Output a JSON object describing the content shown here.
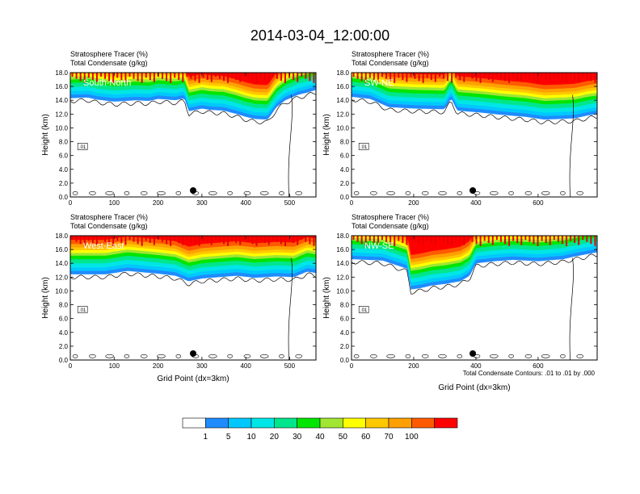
{
  "figure": {
    "title": "2014-03-04_12:00:00",
    "footnote": "Total Condensate Contours: .01 to .01 by .000"
  },
  "chart_data": [
    {
      "type": "heatmap",
      "panel": "South-North",
      "title_lines": [
        "Stratosphere Tracer   (%)",
        "Total Condensate   (g/kg)"
      ],
      "label": "South-North",
      "ylabel": "Height (km)",
      "xlabel": "",
      "xlim": [
        0,
        560
      ],
      "ylim": [
        0,
        18
      ],
      "xticks": [
        0,
        100,
        200,
        300,
        400,
        500
      ],
      "yticks": [
        0.0,
        2.0,
        4.0,
        6.0,
        8.0,
        10.0,
        12.0,
        14.0,
        16.0,
        18.0
      ],
      "marker_x": 280,
      "contour_label": ".01",
      "tracer_base_km": [
        [
          0,
          14.3
        ],
        [
          40,
          14.4
        ],
        [
          60,
          14.1
        ],
        [
          100,
          13.8
        ],
        [
          150,
          14.0
        ],
        [
          180,
          13.9
        ],
        [
          200,
          14.2
        ],
        [
          240,
          14.0
        ],
        [
          260,
          14.3
        ],
        [
          270,
          12.4
        ],
        [
          300,
          12.8
        ],
        [
          320,
          12.6
        ],
        [
          350,
          12.5
        ],
        [
          380,
          12.0
        ],
        [
          400,
          11.6
        ],
        [
          420,
          11.3
        ],
        [
          450,
          11.2
        ],
        [
          470,
          13.0
        ],
        [
          490,
          14.0
        ],
        [
          520,
          14.8
        ],
        [
          540,
          15.1
        ],
        [
          560,
          15.5
        ]
      ]
    },
    {
      "type": "heatmap",
      "panel": "SW-NE",
      "title_lines": [
        "Stratosphere Tracer   (%)",
        "Total Condensate   (g/kg)"
      ],
      "label": "SW-NE",
      "ylabel": "Height (km)",
      "xlabel": "",
      "xlim": [
        0,
        790
      ],
      "ylim": [
        0,
        18
      ],
      "xticks": [
        0,
        200,
        400,
        600
      ],
      "yticks": [
        0.0,
        2.0,
        4.0,
        6.0,
        8.0,
        10.0,
        12.0,
        14.0,
        16.0,
        18.0
      ],
      "marker_x": 390,
      "contour_label": ".01",
      "tracer_base_km": [
        [
          0,
          14.5
        ],
        [
          60,
          14.2
        ],
        [
          120,
          13.0
        ],
        [
          200,
          12.8
        ],
        [
          300,
          12.7
        ],
        [
          320,
          14.3
        ],
        [
          340,
          12.5
        ],
        [
          420,
          12.2
        ],
        [
          480,
          11.9
        ],
        [
          560,
          11.6
        ],
        [
          620,
          11.2
        ],
        [
          680,
          11.3
        ],
        [
          720,
          11.4
        ],
        [
          760,
          11.8
        ],
        [
          790,
          12.0
        ]
      ]
    },
    {
      "type": "heatmap",
      "panel": "West-East",
      "title_lines": [
        "Stratosphere Tracer   (%)",
        "Total Condensate   (g/kg)"
      ],
      "label": "West-East",
      "ylabel": "Height (km)",
      "xlabel": "Grid Point (dx=3km)",
      "xlim": [
        0,
        560
      ],
      "ylim": [
        0,
        18
      ],
      "xticks": [
        0,
        100,
        200,
        300,
        400,
        500
      ],
      "yticks": [
        0.0,
        2.0,
        4.0,
        6.0,
        8.0,
        10.0,
        12.0,
        14.0,
        16.0,
        18.0
      ],
      "marker_x": 280,
      "contour_label": ".01",
      "tracer_base_km": [
        [
          0,
          12.4
        ],
        [
          80,
          12.4
        ],
        [
          130,
          12.9
        ],
        [
          200,
          12.5
        ],
        [
          240,
          12.2
        ],
        [
          270,
          11.4
        ],
        [
          300,
          11.8
        ],
        [
          340,
          12.0
        ],
        [
          380,
          12.2
        ],
        [
          420,
          11.9
        ],
        [
          470,
          12.1
        ],
        [
          510,
          12.0
        ],
        [
          540,
          12.8
        ],
        [
          560,
          12.6
        ]
      ]
    },
    {
      "type": "heatmap",
      "panel": "NW-SE",
      "title_lines": [
        "Stratosphere Tracer   (%)",
        "Total Condensate   (g/kg)"
      ],
      "label": "NW-SE",
      "ylabel": "Height (km)",
      "xlabel": "Grid Point (dx=3km)",
      "xlim": [
        0,
        790
      ],
      "ylim": [
        0,
        18
      ],
      "xticks": [
        0,
        200,
        400,
        600
      ],
      "yticks": [
        0.0,
        2.0,
        4.0,
        6.0,
        8.0,
        10.0,
        12.0,
        14.0,
        16.0,
        18.0
      ],
      "marker_x": 390,
      "contour_label": ".01",
      "tracer_base_km": [
        [
          0,
          14.6
        ],
        [
          100,
          14.4
        ],
        [
          180,
          13.2
        ],
        [
          190,
          10.2
        ],
        [
          220,
          10.4
        ],
        [
          260,
          10.8
        ],
        [
          300,
          11.0
        ],
        [
          350,
          11.4
        ],
        [
          380,
          12.2
        ],
        [
          400,
          14.0
        ],
        [
          460,
          14.3
        ],
        [
          520,
          14.5
        ],
        [
          600,
          14.3
        ],
        [
          680,
          14.6
        ],
        [
          720,
          15.0
        ],
        [
          790,
          15.6
        ]
      ]
    }
  ],
  "colorbar": {
    "labels": [
      "1",
      "5",
      "10",
      "20",
      "30",
      "40",
      "50",
      "60",
      "70",
      "100"
    ],
    "colors": [
      "#ffffff",
      "#1e8cff",
      "#00c8ff",
      "#00e6e6",
      "#00e68c",
      "#00e600",
      "#a0e632",
      "#ffff00",
      "#ffc800",
      "#ffa000",
      "#ff5a00",
      "#ff0000"
    ]
  }
}
